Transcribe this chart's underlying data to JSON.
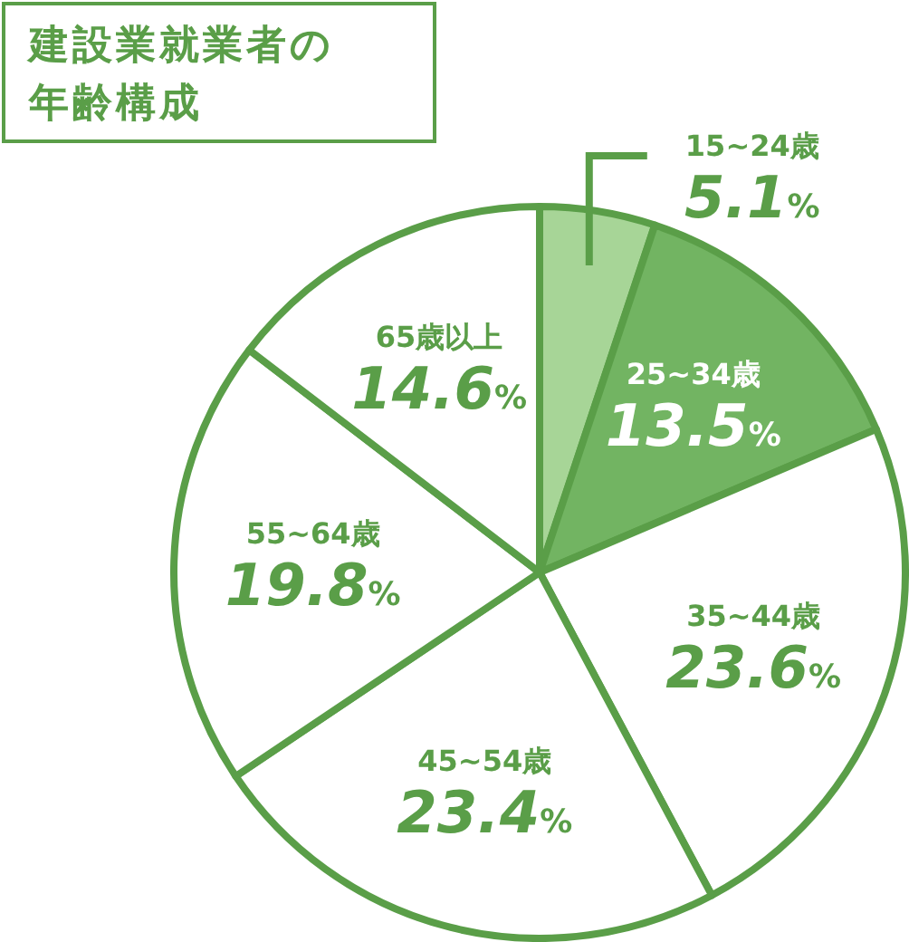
{
  "chart_data": {
    "type": "pie",
    "title": "建設業就業者の年齢構成",
    "categories": [
      "15~24歳",
      "25~34歳",
      "35~44歳",
      "45~54歳",
      "55~64歳",
      "65歳以上"
    ],
    "values": [
      5.1,
      13.5,
      23.6,
      23.4,
      19.8,
      14.6
    ],
    "value_labels": [
      "5.1%",
      "13.5%",
      "23.6%",
      "23.4%",
      "19.8%",
      "14.6%"
    ],
    "colors": [
      "#a7d597",
      "#72b462",
      "#ffffff",
      "#ffffff",
      "#ffffff",
      "#ffffff"
    ]
  }
}
